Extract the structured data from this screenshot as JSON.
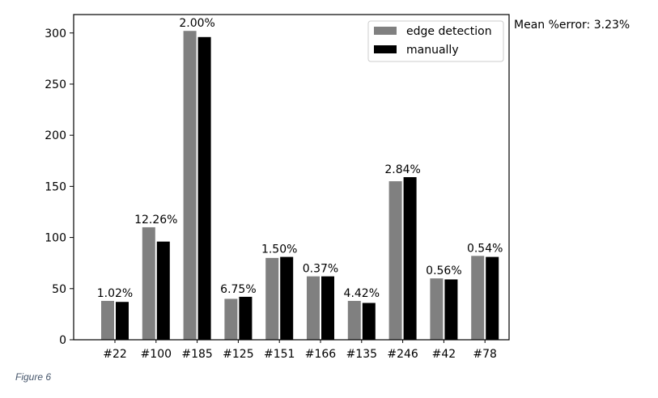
{
  "chart_data": {
    "type": "bar",
    "categories": [
      "#22",
      "#100",
      "#185",
      "#125",
      "#151",
      "#166",
      "#135",
      "#246",
      "#42",
      "#78"
    ],
    "series": [
      {
        "name": "edge detection",
        "color": "#808080",
        "values": [
          38,
          110,
          302,
          40,
          80,
          62,
          38,
          155,
          60,
          82
        ]
      },
      {
        "name": "manually",
        "color": "#000000",
        "values": [
          37,
          96,
          296,
          42,
          81,
          62,
          36,
          159,
          59,
          81
        ]
      }
    ],
    "bar_labels": [
      "1.02%",
      "12.26%",
      "2.00%",
      "6.75%",
      "1.50%",
      "0.37%",
      "4.42%",
      "2.84%",
      "0.56%",
      "0.54%"
    ],
    "yticks": [
      0,
      50,
      100,
      150,
      200,
      250,
      300
    ],
    "ylim": [
      0,
      318
    ],
    "legend_position": "top-right",
    "grid": false,
    "annotation": "Mean %error: 3.23%"
  },
  "caption": "Figure 6"
}
